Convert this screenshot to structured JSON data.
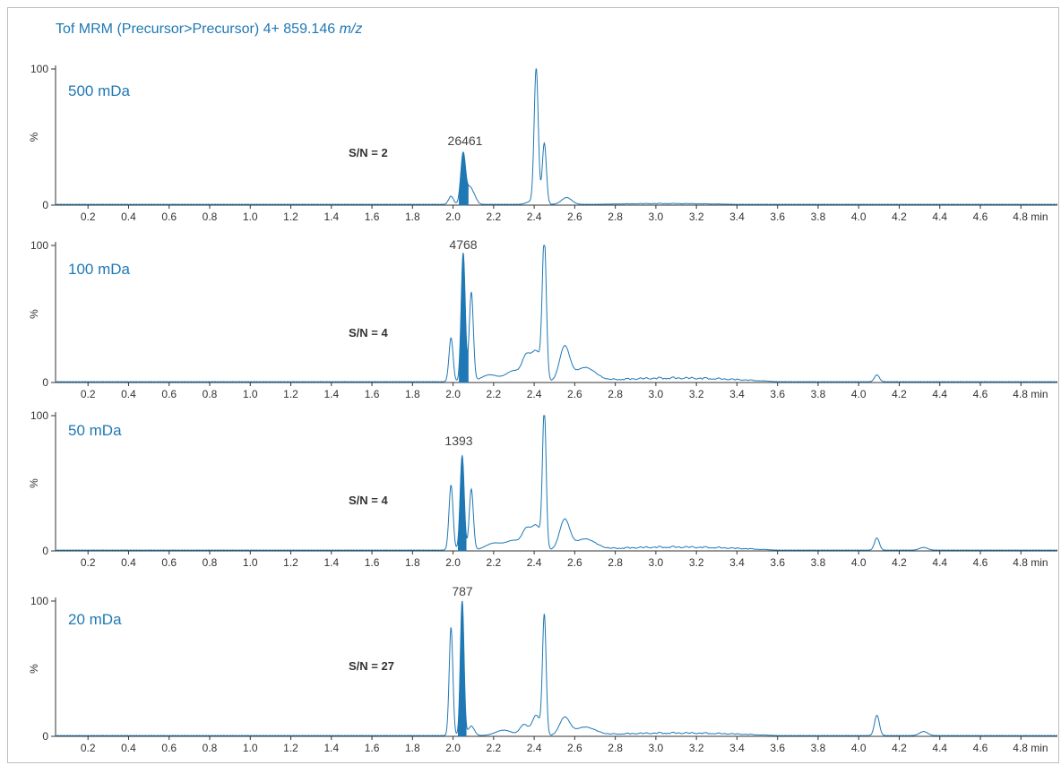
{
  "header": {
    "title_prefix": "Tof MRM (Precursor>Precursor) 4+ 859.146 ",
    "title_unit": "m/z"
  },
  "colors": {
    "trace": "#1f78b4",
    "fill": "#1f78b4",
    "label": "#1f78b4",
    "axis": "#333333"
  },
  "chart_data": [
    {
      "type": "line",
      "label": "500 mDa",
      "sn": "S/N = 2",
      "peak_label": "26461",
      "ylabel": "%",
      "ylim": [
        0,
        100
      ],
      "yticks": [
        "0",
        "100"
      ],
      "xlim": [
        0.04,
        4.98
      ],
      "xticks": [
        "0.2",
        "0.4",
        "0.6",
        "0.8",
        "1.0",
        "1.2",
        "1.4",
        "1.6",
        "1.8",
        "2.0",
        "2.2",
        "2.4",
        "2.6",
        "2.8",
        "3.0",
        "3.2",
        "3.4",
        "3.6",
        "3.8",
        "4.0",
        "4.2",
        "4.4",
        "4.6",
        "4.8 min"
      ],
      "filled_peak": [
        2.03,
        2.075
      ],
      "peaks": [
        [
          1.99,
          6,
          0.012
        ],
        [
          2.05,
          38,
          0.012
        ],
        [
          2.08,
          9,
          0.012
        ],
        [
          2.1,
          7,
          0.015
        ],
        [
          2.38,
          2,
          0.02
        ],
        [
          2.41,
          100,
          0.01
        ],
        [
          2.45,
          45,
          0.01
        ],
        [
          2.56,
          5,
          0.025
        ]
      ],
      "baseline": 0.4,
      "tail": [
        2.7,
        3.4,
        0.8
      ]
    },
    {
      "type": "line",
      "label": "100 mDa",
      "sn": "S/N = 4",
      "peak_label": "4768",
      "ylabel": "%",
      "ylim": [
        0,
        100
      ],
      "yticks": [
        "0",
        "100"
      ],
      "xlim": [
        0.04,
        4.98
      ],
      "xticks": [
        "0.2",
        "0.4",
        "0.6",
        "0.8",
        "1.0",
        "1.2",
        "1.4",
        "1.6",
        "1.8",
        "2.0",
        "2.2",
        "2.4",
        "2.6",
        "2.8",
        "3.0",
        "3.2",
        "3.4",
        "3.6",
        "3.8",
        "4.0",
        "4.2",
        "4.4",
        "4.6",
        "4.8 min"
      ],
      "filled_peak": [
        2.03,
        2.075
      ],
      "peaks": [
        [
          1.99,
          32,
          0.01
        ],
        [
          2.05,
          94,
          0.01
        ],
        [
          2.09,
          65,
          0.01
        ],
        [
          2.18,
          5,
          0.04
        ],
        [
          2.3,
          8,
          0.04
        ],
        [
          2.36,
          15,
          0.02
        ],
        [
          2.41,
          22,
          0.025
        ],
        [
          2.45,
          100,
          0.01
        ],
        [
          2.55,
          25,
          0.025
        ],
        [
          2.65,
          10,
          0.05
        ],
        [
          4.09,
          5,
          0.012
        ]
      ],
      "baseline": 0.4,
      "tail": [
        2.6,
        3.6,
        3.5
      ]
    },
    {
      "type": "line",
      "label": "50 mDa",
      "sn": "S/N = 4",
      "peak_label": "1393",
      "ylabel": "%",
      "ylim": [
        0,
        100
      ],
      "yticks": [
        "0",
        "100"
      ],
      "xlim": [
        0.04,
        4.98
      ],
      "xticks": [
        "0.2",
        "0.4",
        "0.6",
        "0.8",
        "1.0",
        "1.2",
        "1.4",
        "1.6",
        "1.8",
        "2.0",
        "2.2",
        "2.4",
        "2.6",
        "2.8",
        "3.0",
        "3.2",
        "3.4",
        "3.6",
        "3.8",
        "4.0",
        "4.2",
        "4.4",
        "4.6",
        "4.8 min"
      ],
      "filled_peak": [
        2.025,
        2.065
      ],
      "peaks": [
        [
          1.99,
          48,
          0.01
        ],
        [
          2.045,
          70,
          0.01
        ],
        [
          2.09,
          45,
          0.01
        ],
        [
          2.2,
          5,
          0.04
        ],
        [
          2.3,
          7,
          0.04
        ],
        [
          2.36,
          12,
          0.02
        ],
        [
          2.41,
          18,
          0.025
        ],
        [
          2.45,
          100,
          0.009
        ],
        [
          2.55,
          22,
          0.025
        ],
        [
          2.65,
          8,
          0.05
        ],
        [
          4.09,
          9,
          0.012
        ],
        [
          4.32,
          2,
          0.02
        ]
      ],
      "baseline": 0.4,
      "tail": [
        2.6,
        3.6,
        3.0
      ]
    },
    {
      "type": "line",
      "label": "20 mDa",
      "sn": "S/N = 27",
      "peak_label": "787",
      "ylabel": "%",
      "ylim": [
        0,
        100
      ],
      "yticks": [
        "0",
        "100"
      ],
      "xlim": [
        0.04,
        4.98
      ],
      "xticks": [
        "0.2",
        "0.4",
        "0.6",
        "0.8",
        "1.0",
        "1.2",
        "1.4",
        "1.6",
        "1.8",
        "2.0",
        "2.2",
        "2.4",
        "2.6",
        "2.8",
        "3.0",
        "3.2",
        "3.4",
        "3.6",
        "3.8",
        "4.0",
        "4.2",
        "4.4",
        "4.6",
        "4.8 min"
      ],
      "filled_peak": [
        2.025,
        2.065
      ],
      "peaks": [
        [
          1.99,
          80,
          0.009
        ],
        [
          2.045,
          100,
          0.009
        ],
        [
          2.09,
          7,
          0.015
        ],
        [
          2.25,
          4,
          0.04
        ],
        [
          2.35,
          8,
          0.02
        ],
        [
          2.41,
          15,
          0.02
        ],
        [
          2.45,
          88,
          0.009
        ],
        [
          2.55,
          13,
          0.025
        ],
        [
          2.65,
          6,
          0.05
        ],
        [
          4.09,
          15,
          0.012
        ],
        [
          4.32,
          3,
          0.02
        ]
      ],
      "baseline": 0.4,
      "tail": [
        2.6,
        3.6,
        2.5
      ]
    }
  ]
}
